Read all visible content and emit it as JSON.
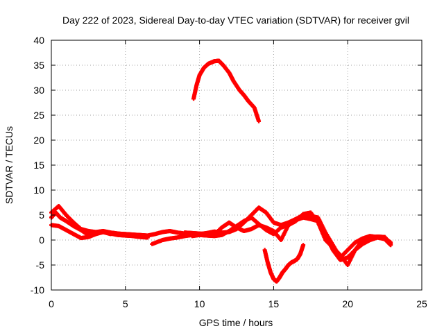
{
  "chart_data": {
    "type": "scatter",
    "title": "Day 222 of 2023, Sidereal Day-to-day VTEC variation (SDTVAR) for receiver gvil",
    "xlabel": "GPS time / hours",
    "ylabel": "SDTVAR / TECUs",
    "xlim": [
      0,
      25
    ],
    "ylim": [
      -10,
      40
    ],
    "xticks": [
      0,
      5,
      10,
      15,
      20,
      25
    ],
    "yticks": [
      -10,
      -5,
      0,
      5,
      10,
      15,
      20,
      25,
      30,
      35,
      40
    ],
    "grid": true,
    "marker": "+",
    "color": "#ff0000",
    "series": [
      {
        "name": "trace-1",
        "x": [
          0.0,
          0.5,
          1.0,
          1.5,
          2.0,
          2.5,
          3.0,
          3.5,
          4.0,
          4.5,
          5.0,
          5.5,
          6.0,
          6.5,
          7.0,
          7.5,
          8.0,
          8.5,
          9.0,
          9.5,
          10.0
        ],
        "y": [
          5.5,
          6.8,
          5.0,
          3.5,
          2.2,
          1.8,
          1.6,
          1.8,
          1.5,
          1.3,
          1.2,
          1.1,
          1.0,
          0.9,
          1.2,
          1.6,
          1.8,
          1.5,
          1.3,
          1.1,
          1.0
        ]
      },
      {
        "name": "trace-2",
        "x": [
          0.0,
          0.5,
          1.0,
          1.5,
          2.0,
          2.5,
          3.0,
          3.5,
          4.0,
          4.5,
          5.0,
          5.5,
          6.0,
          6.5
        ],
        "y": [
          3.0,
          2.8,
          2.0,
          1.2,
          0.4,
          0.6,
          1.2,
          1.6,
          1.3,
          1.0,
          0.9,
          0.8,
          0.6,
          0.5
        ]
      },
      {
        "name": "trace-3",
        "x": [
          0.0,
          0.3,
          0.6,
          1.0,
          1.5,
          2.0,
          2.5,
          3.0,
          3.5,
          4.0
        ],
        "y": [
          4.5,
          5.5,
          4.5,
          3.8,
          2.8,
          2.0,
          1.0,
          1.4,
          1.6,
          1.2
        ]
      },
      {
        "name": "trace-4",
        "x": [
          6.8,
          7.5,
          8.0,
          8.5,
          9.0,
          9.5,
          10.0,
          10.5,
          11.0,
          11.5,
          12.0,
          12.5,
          13.0,
          13.5,
          14.0,
          14.5,
          15.0,
          15.5,
          16.0,
          16.5,
          17.0,
          17.5,
          18.0,
          18.5,
          19.0,
          19.5,
          20.0,
          20.5,
          21.0,
          21.5,
          22.0,
          22.5,
          22.9
        ],
        "y": [
          -0.8,
          0.0,
          0.3,
          0.5,
          0.8,
          1.0,
          1.2,
          1.4,
          1.7,
          1.5,
          1.6,
          2.2,
          3.5,
          5.0,
          6.5,
          5.5,
          3.5,
          3.0,
          3.5,
          4.2,
          5.0,
          4.8,
          4.5,
          1.5,
          -1.0,
          -3.5,
          -2.0,
          -0.5,
          0.3,
          0.8,
          0.6,
          0.4,
          -0.5
        ]
      },
      {
        "name": "trace-5",
        "x": [
          9.0,
          9.5,
          10.0,
          10.5,
          11.0,
          11.5,
          12.0,
          12.5,
          13.0,
          13.5,
          14.0,
          14.5,
          15.0,
          15.5,
          16.0,
          16.5,
          17.0,
          17.5,
          18.0,
          18.5,
          19.0,
          19.5,
          20.0,
          20.5,
          21.0,
          21.5,
          22.0,
          22.5,
          22.9
        ],
        "y": [
          1.5,
          1.4,
          1.3,
          1.2,
          1.1,
          2.5,
          3.5,
          2.5,
          1.8,
          2.2,
          3.0,
          2.5,
          1.8,
          0.0,
          3.0,
          4.0,
          4.5,
          4.2,
          3.8,
          1.0,
          -2.0,
          -4.0,
          -3.5,
          -2.0,
          -0.8,
          0.0,
          0.5,
          0.2,
          -1.0
        ]
      },
      {
        "name": "trace-6",
        "x": [
          9.5,
          10.0,
          10.5,
          11.0,
          11.5,
          12.0,
          12.5,
          13.0,
          13.5,
          14.0,
          14.5,
          15.0,
          15.5,
          16.0,
          16.5,
          17.0,
          17.5,
          18.0,
          18.5,
          19.0,
          19.5,
          20.0,
          20.5,
          21.0,
          21.5,
          22.0,
          22.5,
          22.9
        ],
        "y": [
          0.8,
          1.0,
          0.9,
          0.8,
          1.0,
          1.8,
          2.8,
          3.8,
          4.5,
          3.2,
          2.0,
          1.2,
          2.5,
          3.0,
          3.8,
          5.2,
          5.5,
          3.5,
          0.0,
          -1.5,
          -3.0,
          -5.0,
          -2.0,
          0.0,
          0.5,
          0.7,
          0.6,
          -0.8
        ]
      },
      {
        "name": "trace-7",
        "x": [
          9.6,
          9.8,
          10.0,
          10.3,
          10.6,
          11.0,
          11.3,
          11.6,
          12.0,
          12.3,
          12.7,
          13.0,
          13.3,
          13.7,
          14.0
        ],
        "y": [
          28.3,
          31.0,
          33.0,
          34.5,
          35.3,
          35.8,
          35.9,
          35.0,
          33.5,
          31.8,
          30.0,
          29.0,
          27.8,
          26.5,
          23.8
        ]
      },
      {
        "name": "trace-8",
        "x": [
          14.4,
          14.6,
          14.8,
          15.0,
          15.2,
          15.4,
          15.6,
          15.8,
          16.0,
          16.2,
          16.4,
          16.6,
          16.8,
          17.0
        ],
        "y": [
          -2.0,
          -4.5,
          -6.5,
          -7.8,
          -8.3,
          -7.5,
          -6.5,
          -5.8,
          -5.0,
          -4.5,
          -4.2,
          -3.8,
          -2.8,
          -1.0
        ]
      }
    ]
  }
}
